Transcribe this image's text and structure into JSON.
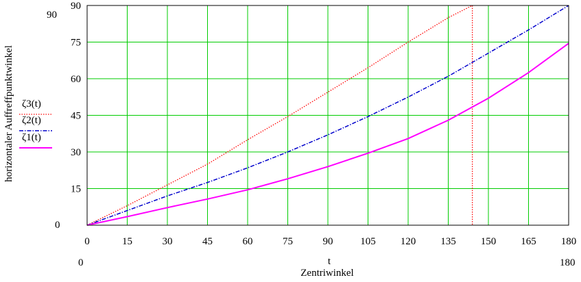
{
  "chart_data": {
    "type": "line",
    "xlabel": "Zentriwinkel",
    "xvar": "t",
    "ylabel": "horizontaler Auffreffpunktwinkel",
    "xlim": [
      0,
      180
    ],
    "ylim": [
      0,
      90
    ],
    "xticks": [
      "0",
      "15",
      "30",
      "45",
      "60",
      "75",
      "90",
      "105",
      "120",
      "135",
      "150",
      "165",
      "180"
    ],
    "yticks": [
      "15",
      "30",
      "45",
      "60",
      "75",
      "90"
    ],
    "x_range_labels": {
      "min": "0",
      "max": "180"
    },
    "y_range_labels": {
      "min": "0",
      "max": "90"
    },
    "grid": true,
    "grid_color": "#00cc00",
    "legend_position": "left",
    "series": [
      {
        "name": "ζ3(t)",
        "color": "#ff0000",
        "style": "dotted",
        "x": [
          0,
          15,
          30,
          45,
          60,
          75,
          90,
          105,
          120,
          135,
          144,
          144
        ],
        "y": [
          0,
          8,
          16.5,
          25,
          35,
          44.5,
          54.5,
          64.5,
          75,
          85,
          90,
          0
        ]
      },
      {
        "name": "ζ2(t)",
        "color": "#0000cc",
        "style": "dashdot",
        "x": [
          0,
          15,
          30,
          45,
          60,
          75,
          90,
          105,
          120,
          135,
          150,
          165,
          180
        ],
        "y": [
          0,
          6,
          12,
          17.5,
          23.5,
          30,
          37,
          44.5,
          52.5,
          61,
          70.5,
          80,
          90
        ]
      },
      {
        "name": "ζ1(t)",
        "color": "#ff00ff",
        "style": "solid",
        "x": [
          0,
          15,
          30,
          45,
          60,
          75,
          90,
          105,
          120,
          135,
          150,
          165,
          180
        ],
        "y": [
          0,
          3.5,
          7.2,
          10.7,
          14.5,
          19,
          24,
          29.5,
          35.5,
          43,
          52,
          62.5,
          74.5
        ]
      }
    ]
  }
}
